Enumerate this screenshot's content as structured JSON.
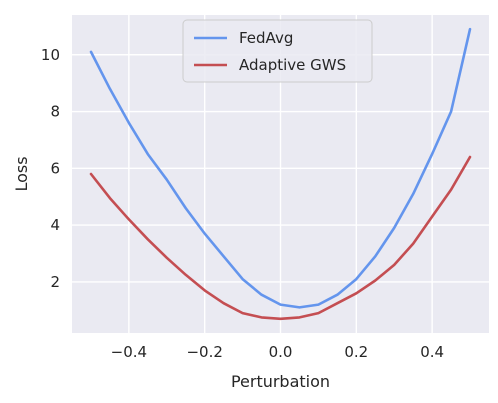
{
  "chart_data": {
    "type": "line",
    "title": "",
    "xlabel": "Perturbation",
    "ylabel": "Loss",
    "xlim": [
      -0.55,
      0.55
    ],
    "ylim": [
      0.2,
      11.4
    ],
    "xticks": [
      -0.4,
      -0.2,
      0.0,
      0.2,
      0.4
    ],
    "xtick_labels": [
      "−0.4",
      "−0.2",
      "0.0",
      "0.2",
      "0.4"
    ],
    "yticks": [
      2,
      4,
      6,
      8,
      10
    ],
    "ytick_labels": [
      "2",
      "4",
      "6",
      "8",
      "10"
    ],
    "grid": true,
    "background": "#eaeaf2",
    "legend": {
      "placement": "upper center"
    },
    "x": [
      -0.5,
      -0.45,
      -0.4,
      -0.35,
      -0.3,
      -0.25,
      -0.2,
      -0.15,
      -0.1,
      -0.05,
      0.0,
      0.05,
      0.1,
      0.15,
      0.2,
      0.25,
      0.3,
      0.35,
      0.4,
      0.45,
      0.5
    ],
    "series": [
      {
        "name": "FedAvg",
        "color": "#6495ed",
        "values": [
          10.1,
          8.8,
          7.6,
          6.5,
          5.6,
          4.6,
          3.7,
          2.9,
          2.1,
          1.55,
          1.2,
          1.1,
          1.2,
          1.55,
          2.1,
          2.9,
          3.9,
          5.1,
          6.5,
          8.0,
          10.9
        ]
      },
      {
        "name": "Adaptive GWS",
        "color": "#c44e52",
        "values": [
          5.8,
          4.95,
          4.2,
          3.5,
          2.85,
          2.25,
          1.7,
          1.25,
          0.9,
          0.75,
          0.7,
          0.75,
          0.9,
          1.25,
          1.6,
          2.05,
          2.6,
          3.35,
          4.3,
          5.25,
          6.4
        ]
      }
    ]
  }
}
